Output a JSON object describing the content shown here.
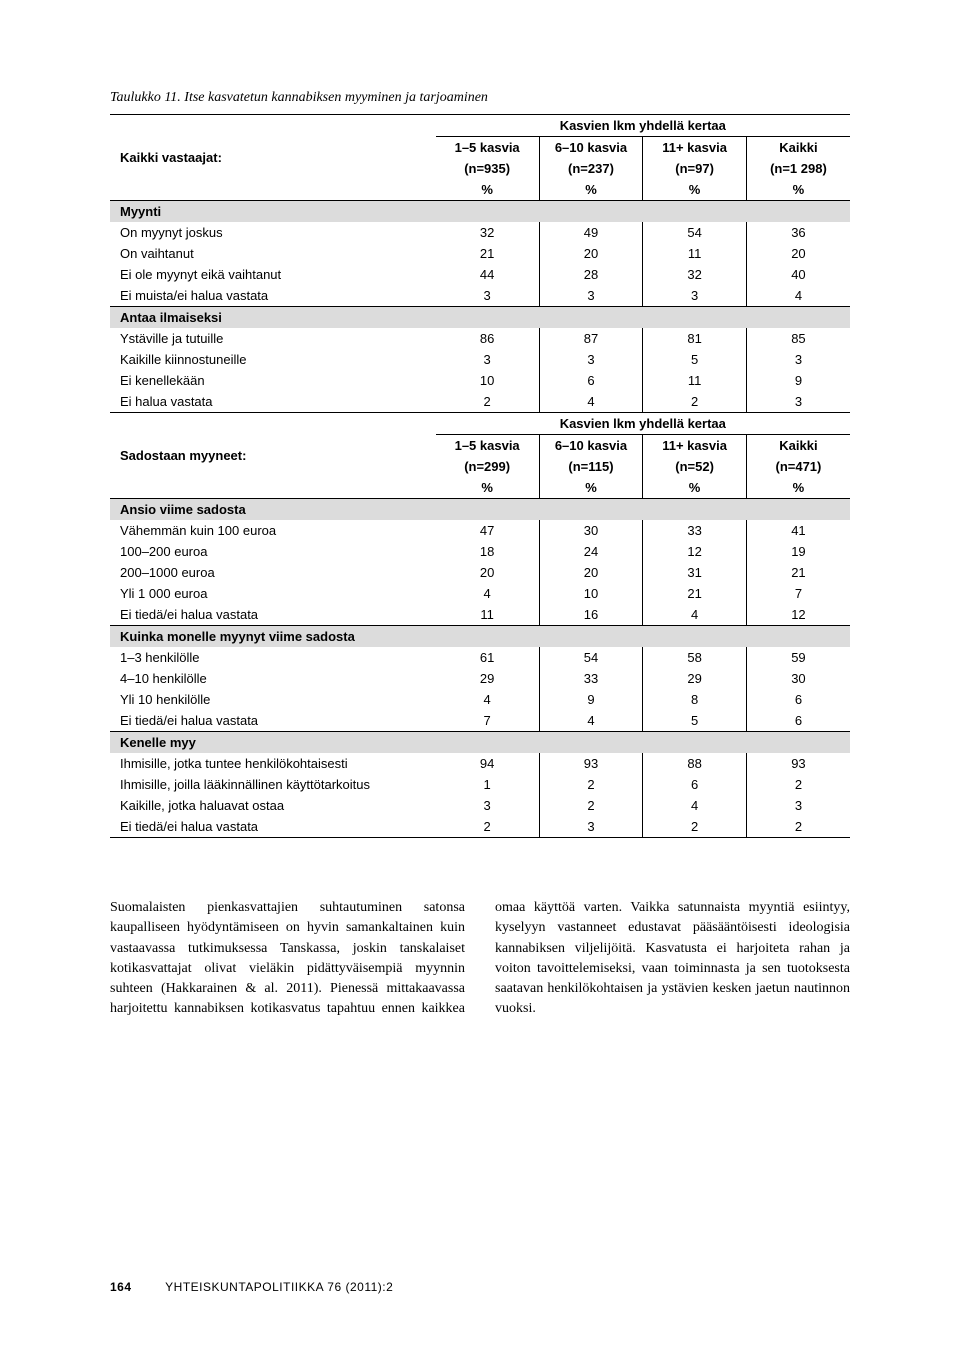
{
  "caption": "Taulukko 11. Itse kasvatetun kannabiksen myyminen ja tarjoaminen",
  "col_widths_pct": [
    44,
    14,
    14,
    14,
    14
  ],
  "table1": {
    "spanner": "Kasvien lkm yhdellä kertaa",
    "row_label": "Kaikki vastaajat:",
    "headers": [
      "1–5 kasvia",
      "6–10 kasvia",
      "11+ kasvia",
      "Kaikki"
    ],
    "ns": [
      "(n=935)",
      "(n=237)",
      "(n=97)",
      "(n=1 298)"
    ],
    "pct": "%",
    "sections": [
      {
        "title": "Myynti",
        "rows": [
          {
            "label": "On myynyt joskus",
            "v": [
              32,
              49,
              54,
              36
            ]
          },
          {
            "label": "On vaihtanut",
            "v": [
              21,
              20,
              11,
              20
            ]
          },
          {
            "label": "Ei ole myynyt eikä vaihtanut",
            "v": [
              44,
              28,
              32,
              40
            ]
          },
          {
            "label": "Ei muista/ei halua vastata",
            "v": [
              3,
              3,
              3,
              4
            ]
          }
        ]
      },
      {
        "title": "Antaa ilmaiseksi",
        "rows": [
          {
            "label": "Ystäville ja tutuille",
            "v": [
              86,
              87,
              81,
              85
            ]
          },
          {
            "label": "Kaikille kiinnostuneille",
            "v": [
              3,
              3,
              5,
              3
            ]
          },
          {
            "label": "Ei kenellekään",
            "v": [
              10,
              6,
              11,
              9
            ]
          },
          {
            "label": "Ei halua vastata",
            "v": [
              2,
              4,
              2,
              3
            ]
          }
        ]
      }
    ]
  },
  "table2": {
    "spanner": "Kasvien lkm yhdellä kertaa",
    "row_label": "Sadostaan myyneet:",
    "headers": [
      "1–5 kasvia",
      "6–10 kasvia",
      "11+ kasvia",
      "Kaikki"
    ],
    "ns": [
      "(n=299)",
      "(n=115)",
      "(n=52)",
      "(n=471)"
    ],
    "pct": "%",
    "sections": [
      {
        "title": "Ansio viime sadosta",
        "rows": [
          {
            "label": "Vähemmän kuin 100 euroa",
            "v": [
              47,
              30,
              33,
              41
            ]
          },
          {
            "label": "100–200 euroa",
            "v": [
              18,
              24,
              12,
              19
            ]
          },
          {
            "label": "200–1000 euroa",
            "v": [
              20,
              20,
              31,
              21
            ]
          },
          {
            "label": "Yli 1 000 euroa",
            "v": [
              4,
              10,
              21,
              7
            ]
          },
          {
            "label": "Ei tiedä/ei halua vastata",
            "v": [
              11,
              16,
              4,
              12
            ]
          }
        ]
      },
      {
        "title": "Kuinka monelle myynyt viime sadosta",
        "rows": [
          {
            "label": "1–3 henkilölle",
            "v": [
              61,
              54,
              58,
              59
            ]
          },
          {
            "label": "4–10 henkilölle",
            "v": [
              29,
              33,
              29,
              30
            ]
          },
          {
            "label": "Yli 10 henkilölle",
            "v": [
              4,
              9,
              8,
              6
            ]
          },
          {
            "label": "Ei tiedä/ei halua vastata",
            "v": [
              7,
              4,
              5,
              6
            ]
          }
        ]
      },
      {
        "title": "Kenelle myy",
        "rows": [
          {
            "label": "Ihmisille, jotka tuntee henkilökohtaisesti",
            "v": [
              94,
              93,
              88,
              93
            ]
          },
          {
            "label": "Ihmisille, joilla lääkinnällinen käyttötarkoitus",
            "v": [
              1,
              2,
              6,
              2
            ]
          },
          {
            "label": "Kaikille, jotka haluavat ostaa",
            "v": [
              3,
              2,
              4,
              3
            ]
          },
          {
            "label": "Ei tiedä/ei halua vastata",
            "v": [
              2,
              3,
              2,
              2
            ]
          }
        ]
      }
    ]
  },
  "body_paragraph": "Suomalaisten pienkasvattajien suhtautuminen satonsa kaupalliseen hyödyntämiseen on hyvin samankaltainen kuin vastaavassa tutkimuksessa Tanskassa, joskin tanskalaiset kotikasvattajat olivat vieläkin pidättyväisempiä myynnin suhteen (Hakkarainen & al. 2011). Pienessä mittakaavassa harjoitettu kannabiksen kotikasvatus tapahtuu ennen kaikkea omaa käyttöä varten. Vaikka satunnaista myyntiä esiintyy, kyselyyn vastanneet edustavat pääsääntöisesti ideologisia kannabiksen viljelijöitä. Kasvatusta ei harjoiteta rahan ja voiton tavoittelemiseksi, vaan toiminnasta ja sen tuotoksesta saatavan henkilökohtaisen ja ystävien kesken jaetun nautinnon vuoksi.",
  "footer": {
    "pagenum": "164",
    "journal": "YHTEISKUNTAPOLITIIKKA 76 (2011):2"
  },
  "colors": {
    "section_bg": "#dcdcdc",
    "text": "#000000",
    "rule": "#000000"
  }
}
